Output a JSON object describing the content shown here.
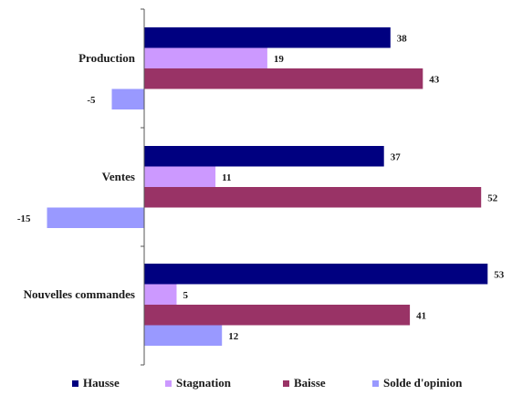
{
  "chart_data": {
    "type": "bar",
    "orientation": "horizontal",
    "categories": [
      "Production",
      "Ventes",
      "Nouvelles commandes"
    ],
    "series": [
      {
        "name": "Hausse",
        "color": "#000080",
        "values": [
          38,
          37,
          53
        ]
      },
      {
        "name": "Stagnation",
        "color": "#CC99FF",
        "values": [
          19,
          11,
          5
        ]
      },
      {
        "name": "Baisse",
        "color": "#993366",
        "values": [
          43,
          52,
          41
        ]
      },
      {
        "name": "Solde d'opinion",
        "color": "#9999FF",
        "values": [
          -5,
          -15,
          12
        ]
      }
    ],
    "xlim": [
      -18,
      58
    ],
    "grid": false,
    "legend_position": "bottom"
  }
}
